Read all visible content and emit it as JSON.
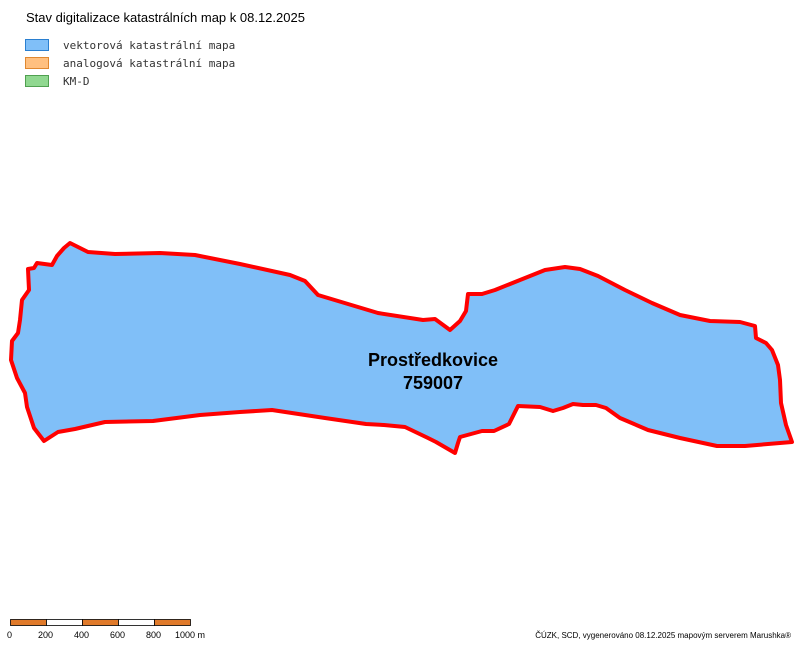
{
  "map_title": "Stav digitalizace katastrálních map k 08.12.2025",
  "legend": [
    {
      "label": "vektorová katastrální mapa",
      "fill": "#80bff8",
      "stroke": "#2a7fd0"
    },
    {
      "label": "analogová katastrální mapa",
      "fill": "#ffc080",
      "stroke": "#e08830"
    },
    {
      "label": "KM-D",
      "fill": "#90d890",
      "stroke": "#50a050"
    }
  ],
  "parcel": {
    "name": "Prostředkovice",
    "code": "759007",
    "fill": "#80bff8",
    "border_color": "#ff0000",
    "category": "vektorová katastrální mapa"
  },
  "scale": {
    "labels": [
      "0",
      "200",
      "400",
      "600",
      "800",
      "1000 m"
    ],
    "segment_color": "#e07a2a"
  },
  "credits": "ČÚZK, SCD, vygenerováno 08.12.2025 mapovým serverem Marushka®"
}
